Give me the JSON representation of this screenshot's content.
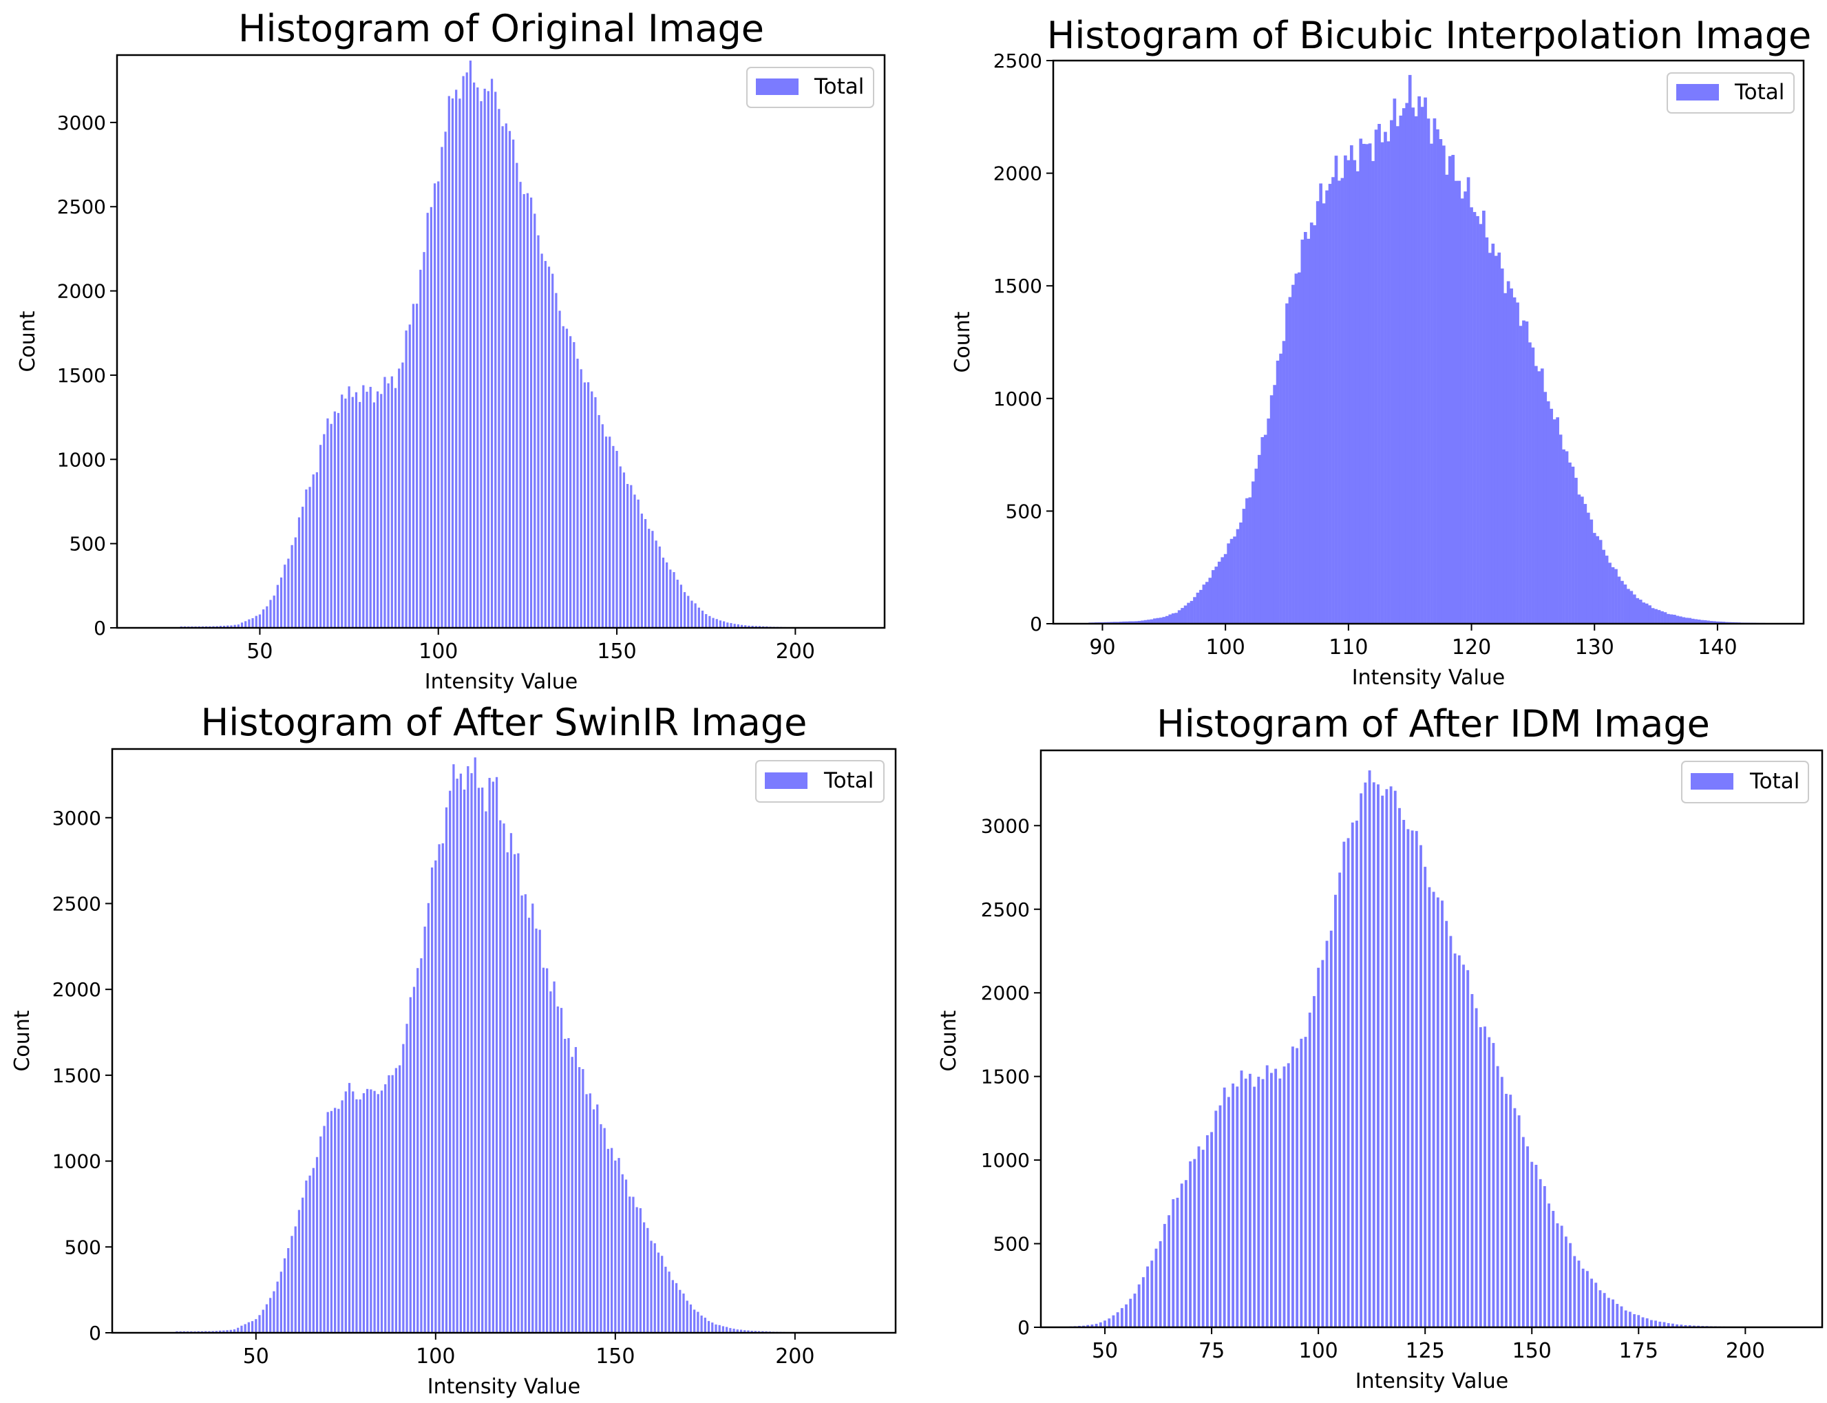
{
  "figure": {
    "colors": {
      "bar": "#7b7bff",
      "axis": "#000000",
      "legend_border": "#cccccc"
    }
  },
  "chart_data": [
    {
      "type": "bar",
      "title": "Histogram of Original Image",
      "xlabel": "Intensity Value",
      "ylabel": "Count",
      "xlim": [
        10,
        225
      ],
      "ylim": [
        0,
        3400
      ],
      "xticks": [
        50,
        100,
        150,
        200
      ],
      "yticks": [
        0,
        500,
        1000,
        1500,
        2000,
        2500,
        3000
      ],
      "legend": {
        "label": "Total",
        "placement": "top-right"
      },
      "bar_style": "separated",
      "x": [
        28,
        33,
        38,
        42,
        44,
        46,
        48,
        50,
        52,
        54,
        56,
        58,
        60,
        62,
        64,
        66,
        68,
        70,
        72,
        74,
        76,
        78,
        80,
        82,
        84,
        86,
        88,
        90,
        92,
        94,
        96,
        98,
        100,
        102,
        104,
        106,
        108,
        110,
        112,
        114,
        116,
        118,
        120,
        122,
        124,
        126,
        128,
        130,
        132,
        134,
        136,
        138,
        140,
        142,
        144,
        146,
        148,
        150,
        152,
        154,
        156,
        158,
        160,
        162,
        164,
        166,
        168,
        170,
        172,
        174,
        176,
        178,
        180,
        182,
        184,
        186,
        188,
        190,
        192,
        194,
        196,
        198,
        200,
        202,
        205,
        210,
        215
      ],
      "values": [
        8,
        8,
        10,
        15,
        20,
        40,
        60,
        80,
        130,
        200,
        300,
        420,
        560,
        720,
        860,
        960,
        1150,
        1250,
        1320,
        1360,
        1420,
        1380,
        1400,
        1390,
        1420,
        1450,
        1480,
        1600,
        1800,
        2000,
        2250,
        2500,
        2750,
        2950,
        3150,
        3250,
        3280,
        3250,
        3220,
        3150,
        3200,
        3050,
        2900,
        2780,
        2620,
        2500,
        2350,
        2200,
        2050,
        1900,
        1780,
        1650,
        1550,
        1450,
        1330,
        1220,
        1120,
        1020,
        930,
        830,
        740,
        650,
        560,
        470,
        390,
        320,
        250,
        190,
        140,
        100,
        70,
        50,
        38,
        28,
        20,
        15,
        12,
        10,
        8,
        6,
        5,
        4,
        3,
        3,
        2,
        2,
        1
      ]
    },
    {
      "type": "bar",
      "title": "Histogram of Bicubic Interpolation Image",
      "xlabel": "Intensity Value",
      "ylabel": "Count",
      "xlim": [
        86,
        147
      ],
      "ylim": [
        0,
        2500
      ],
      "xticks": [
        90,
        100,
        110,
        120,
        130,
        140
      ],
      "yticks": [
        0,
        500,
        1000,
        1500,
        2000,
        2500
      ],
      "legend": {
        "label": "Total",
        "placement": "top-right"
      },
      "bar_style": "dense",
      "x": [
        89,
        91,
        93,
        94,
        95,
        96,
        97,
        98,
        99,
        100,
        101,
        102,
        103,
        104,
        105,
        106,
        107,
        108,
        109,
        110,
        111,
        112,
        113,
        114,
        115,
        116,
        117,
        118,
        119,
        120,
        121,
        122,
        123,
        124,
        125,
        126,
        127,
        128,
        129,
        130,
        131,
        132,
        133,
        134,
        135,
        136,
        137,
        138,
        139,
        140,
        141,
        142,
        143,
        144,
        145
      ],
      "values": [
        5,
        8,
        12,
        20,
        30,
        50,
        90,
        150,
        230,
        320,
        420,
        580,
        800,
        1060,
        1380,
        1620,
        1780,
        1920,
        2000,
        2060,
        2100,
        2140,
        2180,
        2260,
        2340,
        2300,
        2200,
        2080,
        1960,
        1880,
        1760,
        1640,
        1500,
        1380,
        1220,
        1040,
        880,
        720,
        560,
        420,
        300,
        210,
        140,
        95,
        65,
        45,
        32,
        22,
        15,
        10,
        7,
        5,
        4,
        3,
        2
      ]
    },
    {
      "type": "bar",
      "title": "Histogram of After SwinIR Image",
      "xlabel": "Intensity Value",
      "ylabel": "Count",
      "xlim": [
        10,
        228
      ],
      "ylim": [
        0,
        3400
      ],
      "xticks": [
        50,
        100,
        150,
        200
      ],
      "yticks": [
        0,
        500,
        1000,
        1500,
        2000,
        2500,
        3000
      ],
      "legend": {
        "label": "Total",
        "placement": "top-right"
      },
      "bar_style": "separated",
      "x": [
        28,
        33,
        38,
        42,
        44,
        46,
        48,
        50,
        52,
        54,
        56,
        58,
        60,
        62,
        64,
        66,
        68,
        70,
        72,
        74,
        76,
        78,
        80,
        82,
        84,
        86,
        88,
        90,
        92,
        94,
        96,
        98,
        100,
        102,
        104,
        106,
        108,
        110,
        112,
        114,
        116,
        118,
        120,
        122,
        124,
        126,
        128,
        130,
        132,
        134,
        136,
        138,
        140,
        142,
        144,
        146,
        148,
        150,
        152,
        154,
        156,
        158,
        160,
        162,
        164,
        166,
        168,
        170,
        172,
        174,
        176,
        178,
        180,
        182,
        184,
        186,
        188,
        190,
        192,
        194,
        196,
        198,
        200,
        202,
        205,
        210,
        215
      ],
      "values": [
        8,
        8,
        10,
        15,
        20,
        40,
        60,
        80,
        130,
        200,
        300,
        420,
        560,
        720,
        860,
        960,
        1150,
        1250,
        1320,
        1360,
        1420,
        1380,
        1400,
        1390,
        1420,
        1450,
        1480,
        1600,
        1800,
        2000,
        2250,
        2500,
        2750,
        2950,
        3150,
        3250,
        3280,
        3250,
        3220,
        3150,
        3200,
        3050,
        2900,
        2780,
        2620,
        2500,
        2350,
        2200,
        2050,
        1900,
        1780,
        1650,
        1550,
        1450,
        1330,
        1220,
        1120,
        1020,
        930,
        830,
        740,
        650,
        560,
        470,
        390,
        320,
        250,
        190,
        140,
        100,
        70,
        50,
        38,
        28,
        20,
        15,
        12,
        10,
        8,
        6,
        5,
        4,
        3,
        3,
        2,
        2,
        1
      ]
    },
    {
      "type": "bar",
      "title": "Histogram of After IDM Image",
      "xlabel": "Intensity Value",
      "ylabel": "Count",
      "xlim": [
        35,
        218
      ],
      "ylim": [
        0,
        3450
      ],
      "xticks": [
        50,
        75,
        100,
        125,
        150,
        175,
        200
      ],
      "yticks": [
        0,
        500,
        1000,
        1500,
        2000,
        2500,
        3000
      ],
      "legend": {
        "label": "Total",
        "placement": "top-right"
      },
      "bar_style": "separated",
      "x": [
        42,
        45,
        48,
        50,
        52,
        54,
        56,
        58,
        60,
        62,
        64,
        66,
        68,
        70,
        72,
        74,
        76,
        78,
        80,
        82,
        84,
        86,
        88,
        90,
        92,
        94,
        96,
        98,
        100,
        102,
        104,
        106,
        108,
        110,
        112,
        114,
        116,
        118,
        120,
        122,
        124,
        126,
        128,
        130,
        132,
        134,
        136,
        138,
        140,
        142,
        144,
        146,
        148,
        150,
        152,
        154,
        156,
        158,
        160,
        162,
        164,
        166,
        168,
        170,
        172,
        174,
        176,
        178,
        180,
        182,
        184,
        186,
        188,
        190,
        192,
        194,
        196,
        198,
        200,
        202,
        204
      ],
      "values": [
        5,
        10,
        20,
        40,
        70,
        110,
        170,
        250,
        350,
        470,
        600,
        740,
        860,
        960,
        1050,
        1150,
        1250,
        1400,
        1460,
        1480,
        1490,
        1500,
        1510,
        1530,
        1560,
        1620,
        1720,
        1880,
        2080,
        2320,
        2580,
        2820,
        3050,
        3180,
        3250,
        3300,
        3200,
        3150,
        3100,
        2950,
        2850,
        2700,
        2550,
        2420,
        2300,
        2150,
        2000,
        1850,
        1720,
        1580,
        1440,
        1300,
        1160,
        1020,
        880,
        760,
        640,
        540,
        440,
        360,
        290,
        230,
        180,
        140,
        105,
        80,
        60,
        45,
        34,
        25,
        18,
        13,
        10,
        8,
        6,
        5,
        4,
        3,
        3,
        2,
        2
      ]
    }
  ]
}
